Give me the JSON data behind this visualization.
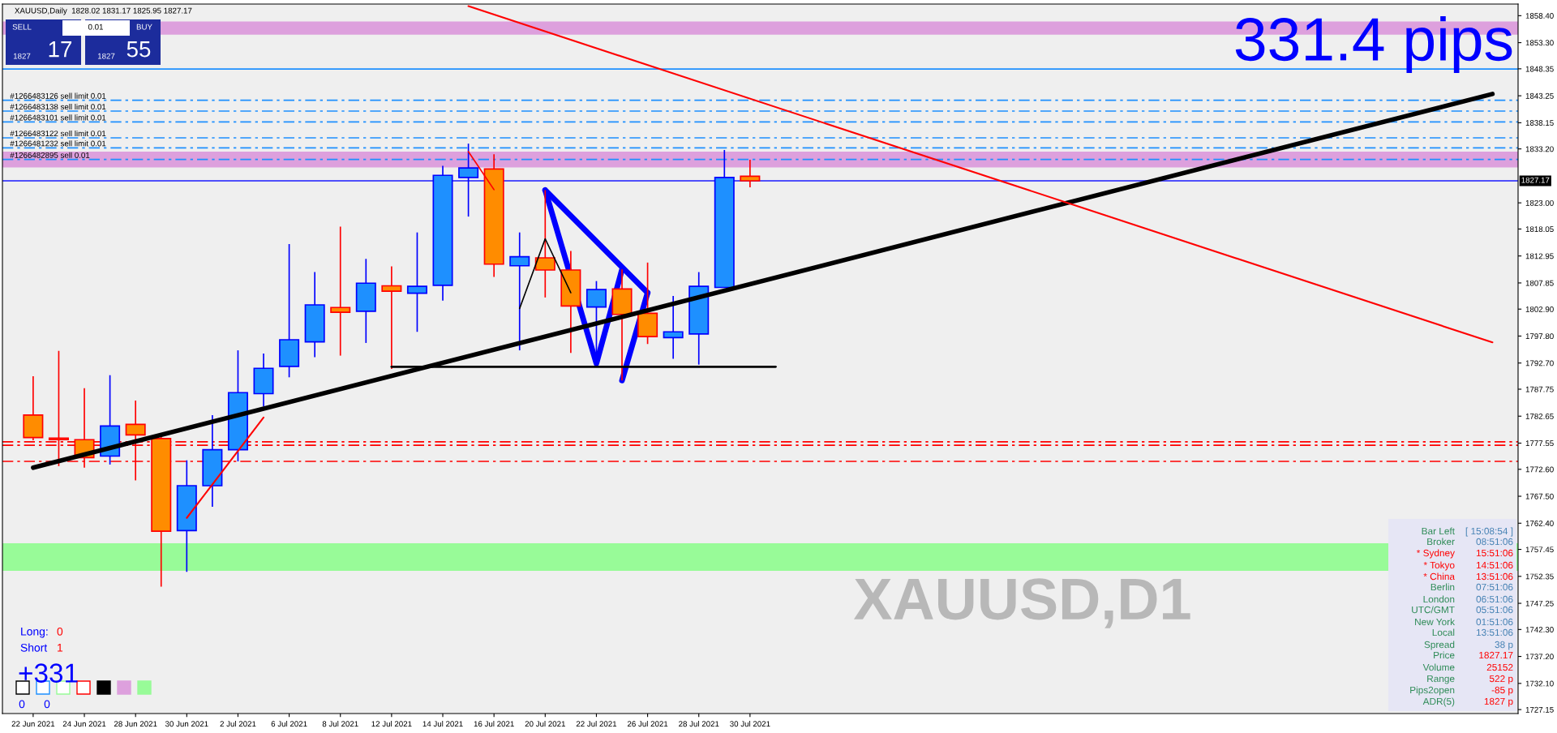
{
  "chart_data": {
    "type": "candlestick",
    "title": "XAUUSD,Daily  1828.02 1831.17 1825.95 1827.17",
    "categories": [
      "22 Jun 2021",
      null,
      "24 Jun 2021",
      null,
      "28 Jun 2021",
      null,
      "30 Jun 2021",
      null,
      "2 Jul 2021",
      null,
      "6 Jul 2021",
      null,
      "8 Jul 2021",
      null,
      "12 Jul 2021",
      null,
      "14 Jul 2021",
      null,
      "16 Jul 2021",
      null,
      "20 Jul 2021",
      null,
      "22 Jul 2021",
      null,
      "26 Jul 2021",
      null,
      "28 Jul 2021",
      null,
      "30 Jul 2021",
      null,
      null,
      null,
      null,
      null,
      null,
      null,
      null,
      null,
      null,
      null,
      null,
      null,
      null,
      null,
      null,
      null,
      null,
      null,
      null,
      null,
      null,
      null,
      null,
      null,
      null,
      null,
      null,
      null
    ],
    "ohlc": [
      [
        1782.85,
        1790.2,
        1778.1,
        1778.6
      ],
      [
        1778.5,
        1795.0,
        1773.2,
        1778.2
      ],
      [
        1778.2,
        1787.95,
        1772.9,
        1774.8
      ],
      [
        1775.1,
        1790.4,
        1773.5,
        1780.8
      ],
      [
        1781.1,
        1785.6,
        1770.5,
        1779.1
      ],
      [
        1778.4,
        1778.9,
        1750.4,
        1760.9
      ],
      [
        1761.0,
        1774.3,
        1753.2,
        1769.5
      ],
      [
        1769.5,
        1782.85,
        1765.5,
        1776.3
      ],
      [
        1776.3,
        1795.1,
        1774.1,
        1787.1
      ],
      [
        1786.9,
        1794.5,
        1784.5,
        1791.7
      ],
      [
        1792.05,
        1815.2,
        1790.0,
        1797.1
      ],
      [
        1796.7,
        1809.9,
        1793.8,
        1803.7
      ],
      [
        1803.2,
        1818.5,
        1794.1,
        1802.3
      ],
      [
        1802.5,
        1812.4,
        1796.5,
        1807.8
      ],
      [
        1807.3,
        1811.0,
        1791.6,
        1806.3
      ],
      [
        1805.9,
        1817.4,
        1798.6,
        1807.2
      ],
      [
        1807.4,
        1830.0,
        1804.5,
        1828.2
      ],
      [
        1827.8,
        1834.2,
        1820.4,
        1829.6
      ],
      [
        1829.4,
        1832.2,
        1809.0,
        1811.4
      ],
      [
        1811.1,
        1817.4,
        1795.1,
        1812.8
      ],
      [
        1812.6,
        1825.4,
        1805.1,
        1810.3
      ],
      [
        1810.3,
        1813.9,
        1794.6,
        1803.5
      ],
      [
        1803.3,
        1808.2,
        1792.7,
        1806.6
      ],
      [
        1806.7,
        1810.4,
        1789.4,
        1801.9
      ],
      [
        1802.1,
        1811.7,
        1796.3,
        1797.7
      ],
      [
        1797.5,
        1805.4,
        1793.5,
        1798.6
      ],
      [
        1798.2,
        1809.9,
        1792.4,
        1807.2
      ],
      [
        1807.0,
        1833.0,
        1806.9,
        1827.8
      ],
      [
        1828.02,
        1831.17,
        1825.95,
        1827.17
      ],
      null,
      null,
      null,
      null,
      null,
      null,
      null,
      null,
      null,
      null,
      null,
      null,
      null,
      null,
      null,
      null,
      null,
      null,
      null,
      null,
      null,
      null,
      null,
      null,
      null,
      null,
      null,
      null,
      null
    ],
    "colors": [
      "#ff8c00",
      "#ff8c00",
      "#ff8c00",
      "#1e90ff",
      "#ff8c00",
      "#ff8c00",
      "#1e90ff",
      "#1e90ff",
      "#1e90ff",
      "#1e90ff",
      "#1e90ff",
      "#1e90ff",
      "#ff8c00",
      "#1e90ff",
      "#ff8c00",
      "#1e90ff",
      "#1e90ff",
      "#1e90ff",
      "#ff8c00",
      "#1e90ff",
      "#ff8c00",
      "#ff8c00",
      "#1e90ff",
      "#ff8c00",
      "#ff8c00",
      "#1e90ff",
      "#1e90ff",
      "#1e90ff",
      "#ff8c00",
      null,
      null,
      null,
      null,
      null,
      null,
      null,
      null,
      null,
      null,
      null,
      null,
      null,
      null,
      null,
      null,
      null,
      null,
      null,
      null,
      null,
      null,
      null,
      null,
      null,
      null,
      null,
      null,
      null
    ],
    "series": [
      {
        "type": "line",
        "color": "#000000",
        "values": [
          1772.9,
          null,
          null,
          null,
          null,
          null,
          null,
          null,
          null,
          null,
          null,
          null,
          null,
          null,
          null,
          null,
          null,
          null,
          null,
          null,
          null,
          null,
          null,
          null,
          null,
          null,
          null,
          null,
          null,
          null,
          null,
          null,
          null,
          null,
          null,
          null,
          null,
          null,
          null,
          null,
          null,
          null,
          null,
          null,
          null,
          null,
          null,
          null,
          null,
          null,
          null,
          null,
          null,
          null,
          null,
          null,
          null,
          1843.6
        ]
      },
      {
        "type": "line",
        "color": "#ff0000",
        "values": [
          null,
          null,
          null,
          null,
          null,
          null,
          null,
          null,
          null,
          null,
          null,
          null,
          null,
          null,
          null,
          null,
          null,
          1860.2,
          null,
          null,
          null,
          null,
          null,
          null,
          null,
          null,
          null,
          null,
          null,
          null,
          null,
          null,
          null,
          null,
          null,
          null,
          null,
          null,
          null,
          null,
          null,
          null,
          null,
          null,
          null,
          null,
          null,
          null,
          null,
          null,
          null,
          null,
          null,
          null,
          null,
          null,
          null,
          1796.6
        ]
      },
      {
        "type": "line",
        "color": "#0000ff",
        "values": [
          null,
          null,
          null,
          null,
          null,
          null,
          null,
          null,
          null,
          null,
          null,
          null,
          null,
          null,
          null,
          null,
          null,
          null,
          null,
          null,
          1825.4,
          null,
          1792.6,
          1810.4,
          null,
          null,
          null,
          null,
          null,
          null,
          null,
          null,
          null,
          null,
          null,
          null,
          null,
          null,
          null,
          null,
          null,
          null,
          null,
          null,
          null,
          null,
          null,
          null,
          null,
          null,
          null,
          null,
          null,
          null,
          null,
          null,
          null,
          null
        ]
      },
      {
        "type": "line",
        "color": "#0000ff",
        "values": [
          null,
          null,
          null,
          null,
          null,
          null,
          null,
          null,
          null,
          null,
          null,
          null,
          null,
          null,
          null,
          null,
          null,
          null,
          null,
          null,
          null,
          null,
          null,
          1789.4,
          1806.0,
          null,
          null,
          null,
          null,
          null,
          null,
          null,
          null,
          null,
          null,
          null,
          null,
          null,
          null,
          null,
          null,
          null,
          null,
          null,
          null,
          null,
          null,
          null,
          null,
          null,
          null,
          null,
          null,
          null,
          null,
          null,
          null,
          null
        ]
      },
      {
        "type": "line",
        "color": "#0000ff",
        "values": [
          null,
          null,
          null,
          null,
          null,
          null,
          null,
          null,
          null,
          null,
          null,
          null,
          null,
          null,
          null,
          null,
          null,
          null,
          null,
          null,
          1825.4,
          null,
          null,
          null,
          1806.0,
          null,
          null,
          null,
          null,
          null,
          null,
          null,
          null,
          null,
          null,
          null,
          null,
          null,
          null,
          null,
          null,
          null,
          null,
          null,
          null,
          null,
          null,
          null,
          null,
          null,
          null,
          null,
          null,
          null,
          null,
          null,
          null,
          null
        ]
      },
      {
        "type": "line",
        "color": "#000000",
        "values": [
          null,
          null,
          null,
          null,
          null,
          null,
          null,
          null,
          null,
          null,
          null,
          null,
          null,
          null,
          1792.0,
          null,
          null,
          null,
          null,
          null,
          null,
          null,
          null,
          null,
          null,
          null,
          null,
          null,
          null,
          1792.0,
          null,
          null,
          null,
          null,
          null,
          null,
          null,
          null,
          null,
          null,
          null,
          null,
          null,
          null,
          null,
          null,
          null,
          null,
          null,
          null,
          null,
          null,
          null,
          null,
          null,
          null,
          null,
          null
        ]
      },
      {
        "type": "line",
        "color": "#ff0000",
        "values": [
          null,
          null,
          null,
          null,
          null,
          null,
          1763.4,
          null,
          null,
          1782.4,
          null,
          null,
          null,
          null,
          null,
          null,
          null,
          null,
          null,
          null,
          null,
          null,
          null,
          null,
          null,
          null,
          null,
          null,
          null,
          null,
          null,
          null,
          null,
          null,
          null,
          null,
          null,
          null,
          null,
          null,
          null,
          null,
          null,
          null,
          null,
          null,
          null,
          null,
          null,
          null,
          null,
          null,
          null,
          null,
          null,
          null,
          null,
          null
        ]
      },
      {
        "type": "line",
        "color": "#000000",
        "values": [
          null,
          null,
          null,
          null,
          null,
          null,
          null,
          null,
          null,
          null,
          null,
          null,
          null,
          null,
          null,
          null,
          null,
          null,
          null,
          1803.0,
          1816.2,
          1806.0,
          null,
          null,
          null,
          null,
          null,
          null,
          null,
          null,
          null,
          null,
          null,
          null,
          null,
          null,
          null,
          null,
          null,
          null,
          null,
          null,
          null,
          null,
          null,
          null,
          null,
          null,
          null,
          null,
          null,
          null,
          null,
          null,
          null,
          null,
          null,
          null
        ]
      },
      {
        "type": "line",
        "color": "#ff0000",
        "values": [
          null,
          null,
          null,
          null,
          null,
          null,
          null,
          null,
          null,
          null,
          null,
          null,
          null,
          null,
          null,
          null,
          null,
          1832.7,
          1825.5,
          null,
          null,
          null,
          null,
          null,
          null,
          null,
          null,
          null,
          null,
          null,
          null,
          null,
          null,
          null,
          null,
          null,
          null,
          null,
          null,
          null,
          null,
          null,
          null,
          null,
          null,
          null,
          null,
          null,
          null,
          null,
          null,
          null,
          null,
          null,
          null,
          null,
          null,
          null
        ]
      }
    ],
    "ylim": [
      1726.4,
      1860.6
    ],
    "yticks": [
      {
        "value": 1858.4,
        "label": "1858.40"
      },
      {
        "value": 1853.3,
        "label": "1853.30"
      },
      1848.35,
      1843.25,
      1838.15,
      {
        "value": 1833.2,
        "label": "1833.20"
      },
      {
        "value": 1823.0,
        "label": "1823.00"
      },
      1818.05,
      1812.95,
      1807.85,
      {
        "value": 1802.9,
        "label": "1802.90"
      },
      {
        "value": 1797.8,
        "label": "1797.80"
      },
      {
        "value": 1792.7,
        "label": "1792.70"
      },
      1787.75,
      1782.65,
      1777.55,
      {
        "value": 1772.6,
        "label": "1772.60"
      },
      {
        "value": 1767.5,
        "label": "1767.50"
      },
      {
        "value": 1762.4,
        "label": "1762.40"
      },
      1757.45,
      1752.35,
      1747.25,
      {
        "value": 1742.3,
        "label": "1742.30"
      },
      {
        "value": 1737.2,
        "label": "1737.20"
      },
      {
        "value": 1732.1,
        "label": "1732.10"
      },
      1727.15
    ],
    "ref_lines": [
      {
        "axis": "y",
        "value": 1827.17,
        "label": "1827.17",
        "color": "#1a1aff",
        "line_style": "solid"
      },
      {
        "axis": "y",
        "value": 1848.3,
        "color": "#1e90ff",
        "line_style": "solid"
      },
      {
        "axis": "y",
        "value": 1842.4,
        "label": "#1266483126 sell limit 0.01",
        "color": "#1e90ff",
        "line_style": "dashed"
      },
      {
        "axis": "y",
        "value": 1840.35,
        "label": "#1266483138 sell limit 0.01",
        "color": "#1e90ff",
        "line_style": "dashed"
      },
      {
        "axis": "y",
        "value": 1838.3,
        "label": "#1266483101 sell limit 0.01",
        "color": "#1e90ff",
        "line_style": "dashed"
      },
      {
        "axis": "y",
        "value": 1835.3,
        "label": "#1266483122 sell limit 0.01",
        "color": "#1e90ff",
        "line_style": "dashed"
      },
      {
        "axis": "y",
        "value": 1833.4,
        "label": "#1266481232 sell limit 0.01",
        "color": "#1e90ff",
        "line_style": "dashed"
      },
      {
        "axis": "y",
        "value": 1831.2,
        "label": "#1266482895 sell 0.01",
        "color": "#1e90ff",
        "line_style": "dashed"
      },
      {
        "axis": "y",
        "value": 1777.8,
        "color": "#ff0000",
        "line_style": "dashed"
      },
      {
        "axis": "y",
        "value": 1777.15,
        "color": "#ff0000",
        "line_style": "dashed"
      },
      {
        "axis": "y",
        "value": 1774.1,
        "color": "#ff0000",
        "line_style": "dashed"
      }
    ],
    "bands": [
      {
        "axis": "y",
        "from": 1854.8,
        "to": 1857.3,
        "color": "#dda0dd"
      },
      {
        "axis": "y",
        "from": 1829.7,
        "to": 1832.7,
        "color": "#dda0dd"
      },
      {
        "axis": "y",
        "from": 1753.4,
        "to": 1758.6,
        "color": "#98fb98"
      }
    ],
    "annotations": [
      "331.4 pips",
      "XAUUSD,D1",
      "SELL",
      "0.01",
      "BUY",
      "1827",
      "17",
      "1827",
      "55",
      "Long:",
      "0",
      "Short",
      "1",
      "+331",
      "0",
      "0",
      "Bar Left",
      "[ 15:08:54 ]",
      "Broker",
      "08:51:06",
      "* Sydney",
      "15:51:06",
      "* Tokyo",
      "14:51:06",
      "* China",
      "13:51:06",
      "Berlin",
      "07:51:06",
      "London",
      "06:51:06",
      "UTC/GMT",
      "05:51:06",
      "New York",
      "01:51:06",
      "Local",
      "13:51:06",
      "Spread",
      "38 p",
      "Price",
      "1827.17",
      "Volume",
      "25152",
      "Range",
      "522 p",
      "Pips2open",
      "-85 p",
      "ADR(5)",
      "1827 p"
    ],
    "grid": false,
    "legend": false
  }
}
